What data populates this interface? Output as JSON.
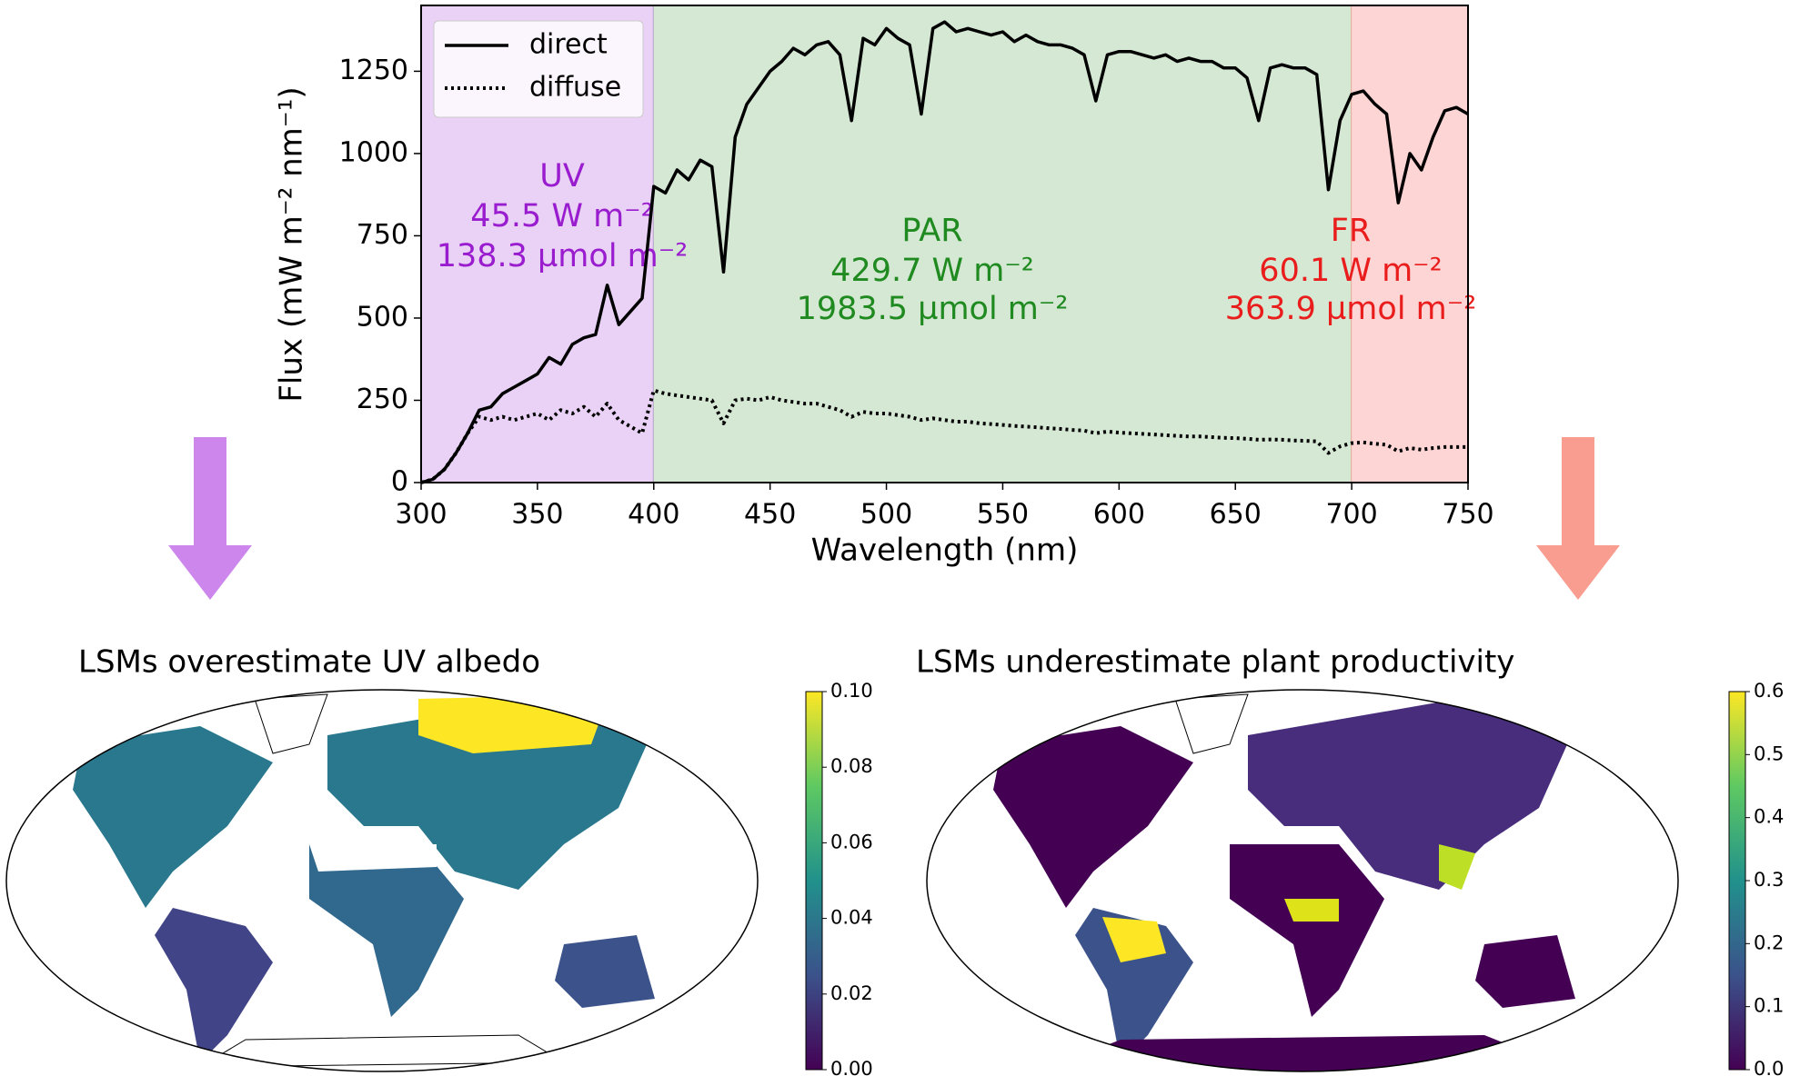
{
  "chart_data": [
    {
      "type": "line",
      "xlabel": "Wavelength (nm)",
      "ylabel": "Flux (mW m⁻² nm⁻¹)",
      "xlim": [
        300,
        750
      ],
      "xticks": [
        300,
        350,
        400,
        450,
        500,
        550,
        600,
        650,
        700,
        750
      ],
      "ylim": [
        0,
        1450
      ],
      "yticks": [
        0,
        250,
        500,
        750,
        1000,
        1250
      ],
      "legend": "upper left",
      "x": [
        300,
        305,
        310,
        315,
        320,
        325,
        330,
        335,
        340,
        345,
        350,
        355,
        360,
        365,
        370,
        375,
        380,
        385,
        390,
        395,
        400,
        405,
        410,
        415,
        420,
        425,
        430,
        435,
        440,
        445,
        450,
        455,
        460,
        465,
        470,
        475,
        480,
        485,
        490,
        495,
        500,
        505,
        510,
        515,
        520,
        525,
        530,
        535,
        540,
        545,
        550,
        555,
        560,
        565,
        570,
        575,
        580,
        585,
        590,
        595,
        600,
        605,
        610,
        615,
        620,
        625,
        630,
        635,
        640,
        645,
        650,
        655,
        660,
        665,
        670,
        675,
        680,
        685,
        690,
        695,
        700,
        705,
        710,
        715,
        720,
        725,
        730,
        735,
        740,
        745,
        750
      ],
      "series": [
        {
          "name": "direct",
          "color": "#000000",
          "linestyle": "solid",
          "values": [
            0,
            10,
            40,
            90,
            150,
            220,
            230,
            270,
            290,
            310,
            330,
            380,
            360,
            420,
            440,
            450,
            600,
            480,
            520,
            560,
            900,
            880,
            950,
            920,
            980,
            960,
            640,
            1050,
            1150,
            1200,
            1250,
            1280,
            1320,
            1300,
            1330,
            1340,
            1300,
            1100,
            1350,
            1330,
            1380,
            1350,
            1330,
            1120,
            1380,
            1400,
            1370,
            1380,
            1370,
            1360,
            1370,
            1340,
            1360,
            1340,
            1330,
            1330,
            1320,
            1300,
            1160,
            1300,
            1310,
            1310,
            1300,
            1290,
            1300,
            1280,
            1290,
            1280,
            1280,
            1260,
            1260,
            1230,
            1100,
            1260,
            1270,
            1260,
            1260,
            1240,
            890,
            1100,
            1180,
            1190,
            1150,
            1120,
            850,
            1000,
            950,
            1050,
            1130,
            1140,
            1120
          ]
        },
        {
          "name": "diffuse",
          "color": "#000000",
          "linestyle": "dotted",
          "values": [
            0,
            10,
            40,
            90,
            150,
            200,
            190,
            200,
            190,
            200,
            210,
            190,
            220,
            210,
            230,
            200,
            240,
            190,
            170,
            150,
            280,
            270,
            265,
            260,
            255,
            250,
            180,
            250,
            255,
            250,
            260,
            250,
            245,
            240,
            240,
            230,
            220,
            200,
            215,
            210,
            210,
            205,
            200,
            190,
            195,
            190,
            185,
            185,
            180,
            178,
            175,
            172,
            170,
            168,
            165,
            163,
            160,
            158,
            150,
            155,
            152,
            150,
            148,
            146,
            144,
            142,
            140,
            140,
            138,
            136,
            135,
            133,
            130,
            131,
            130,
            128,
            127,
            125,
            90,
            110,
            120,
            122,
            118,
            115,
            95,
            105,
            100,
            105,
            108,
            108,
            108
          ]
        }
      ],
      "regions": [
        {
          "start": 300,
          "end": 400,
          "color": "#e9d2f5",
          "edge": "#b9a0c9",
          "text_color": "#9a1ccf",
          "label": "UV",
          "energy": "45.5 W m⁻²",
          "photons": "138.3 µmol m⁻²"
        },
        {
          "start": 400,
          "end": 700,
          "color": "#d5e8d4",
          "edge": "#e8a898",
          "text_color": "#1f8a1f",
          "label": "PAR",
          "energy": "429.7 W m⁻²",
          "photons": "1983.5 µmol m⁻²"
        },
        {
          "start": 700,
          "end": 750,
          "color": "#fdd5d5",
          "edge": "#fdd5d5",
          "text_color": "#ea1d1d",
          "label": "FR",
          "energy": "60.1 W m⁻²",
          "photons": "363.9 µmol m⁻²"
        }
      ]
    },
    {
      "type": "map",
      "title": "LSMs overestimate UV albedo",
      "clim": [
        0,
        0.1
      ],
      "cticks": [
        {
          "value": 0,
          "label": "0.00"
        },
        {
          "value": 0.02,
          "label": "0.02"
        },
        {
          "value": 0.04,
          "label": "0.04"
        },
        {
          "value": 0.06,
          "label": "0.06"
        },
        {
          "value": 0.08,
          "label": "0.08"
        },
        {
          "value": 0.1,
          "label": "0.10"
        }
      ],
      "colormap": [
        "#440154",
        "#3b528b",
        "#21918c",
        "#5ec962",
        "#fde725"
      ]
    },
    {
      "type": "map",
      "title": "LSMs underestimate plant productivity",
      "clim": [
        0,
        0.6
      ],
      "cticks": [
        {
          "value": 0,
          "label": "0.0"
        },
        {
          "value": 0.1,
          "label": "0.1"
        },
        {
          "value": 0.2,
          "label": "0.2"
        },
        {
          "value": 0.3,
          "label": "0.3"
        },
        {
          "value": 0.4,
          "label": "0.4"
        },
        {
          "value": 0.5,
          "label": "0.5"
        },
        {
          "value": 0.6,
          "label": "0.6"
        }
      ],
      "colormap": [
        "#440154",
        "#3b528b",
        "#21918c",
        "#5ec962",
        "#fde725"
      ]
    }
  ]
}
